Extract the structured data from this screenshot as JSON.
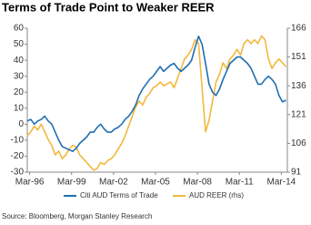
{
  "chart_data": {
    "type": "line",
    "title": "Terms of Trade Point to Weaker REER",
    "source": "Source: Bloomberg, Morgan Stanley Research",
    "x": [
      1996,
      1996.25,
      1996.5,
      1996.75,
      1997,
      1997.25,
      1997.5,
      1997.75,
      1998,
      1998.25,
      1998.5,
      1998.75,
      1999,
      1999.25,
      1999.5,
      1999.75,
      2000,
      2000.25,
      2000.5,
      2000.75,
      2001,
      2001.25,
      2001.5,
      2001.75,
      2002,
      2002.25,
      2002.5,
      2002.75,
      2003,
      2003.25,
      2003.5,
      2003.75,
      2004,
      2004.25,
      2004.5,
      2004.75,
      2005,
      2005.25,
      2005.5,
      2005.75,
      2006,
      2006.25,
      2006.5,
      2006.75,
      2007,
      2007.25,
      2007.5,
      2007.75,
      2008,
      2008.25,
      2008.5,
      2008.75,
      2009,
      2009.25,
      2009.5,
      2009.75,
      2010,
      2010.25,
      2010.5,
      2010.75,
      2011,
      2011.25,
      2011.5,
      2011.75,
      2012,
      2012.25,
      2012.5,
      2012.75,
      2013,
      2013.25,
      2013.5,
      2013.75,
      2014,
      2014.25,
      2014.5
    ],
    "series": [
      {
        "name": "Citi AUD Terms of Trade",
        "color": "#1f6fb2",
        "values": [
          2,
          3,
          0,
          2,
          3,
          5,
          2,
          0,
          -5,
          -10,
          -14,
          -15,
          -16,
          -17,
          -15,
          -12,
          -10,
          -8,
          -5,
          -5,
          -2,
          0,
          -3,
          -5,
          -5,
          -3,
          -2,
          0,
          3,
          5,
          8,
          12,
          18,
          22,
          25,
          28,
          30,
          33,
          36,
          33,
          35,
          37,
          38,
          35,
          33,
          35,
          37,
          40,
          48,
          55,
          50,
          38,
          25,
          20,
          18,
          22,
          28,
          33,
          38,
          40,
          42,
          42,
          40,
          38,
          35,
          30,
          25,
          25,
          28,
          30,
          28,
          25,
          18,
          14,
          15
        ]
      },
      {
        "name": "AUD REER (rhs)",
        "color": "#f2b83c",
        "axis": "y2",
        "values": [
          110,
          112,
          115,
          113,
          116,
          112,
          108,
          105,
          100,
          102,
          98,
          100,
          103,
          105,
          104,
          100,
          98,
          96,
          94,
          92,
          93,
          96,
          95,
          97,
          98,
          100,
          103,
          106,
          110,
          115,
          120,
          125,
          128,
          126,
          130,
          132,
          135,
          136,
          138,
          136,
          137,
          138,
          135,
          140,
          145,
          150,
          152,
          155,
          160,
          158,
          135,
          112,
          118,
          128,
          138,
          142,
          148,
          145,
          150,
          152,
          155,
          152,
          158,
          160,
          158,
          160,
          158,
          162,
          160,
          150,
          145,
          148,
          150,
          148,
          146
        ]
      }
    ],
    "xlim": [
      1996,
      2014.6
    ],
    "xticks": [
      {
        "value": 1996.17,
        "label": "Mar-96"
      },
      {
        "value": 1999.17,
        "label": "Mar-99"
      },
      {
        "value": 2002.17,
        "label": "Mar-02"
      },
      {
        "value": 2005.17,
        "label": "Mar-05"
      },
      {
        "value": 2008.17,
        "label": "Mar-08"
      },
      {
        "value": 2011.17,
        "label": "Mar-11"
      },
      {
        "value": 2014.17,
        "label": "Mar-14"
      }
    ],
    "ylim": [
      -30,
      60
    ],
    "yticks": [
      -30,
      -20,
      -10,
      0,
      10,
      20,
      30,
      40,
      50,
      60
    ],
    "y2lim": [
      91,
      166
    ],
    "y2ticks": [
      91,
      106,
      121,
      136,
      151,
      166
    ]
  }
}
